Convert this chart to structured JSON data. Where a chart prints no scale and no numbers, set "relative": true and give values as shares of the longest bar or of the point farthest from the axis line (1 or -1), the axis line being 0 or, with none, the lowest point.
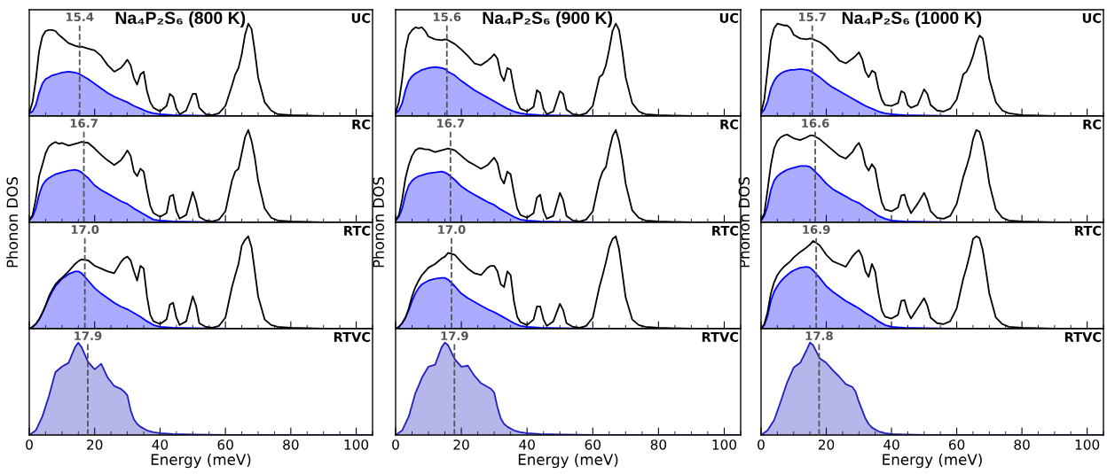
{
  "chart_data": [
    {
      "type": "line",
      "title": "Na₄P₂S₆ (800 K)",
      "relative": true,
      "xlim": [
        0,
        105
      ],
      "xticks": [
        0,
        20,
        40,
        60,
        80,
        100
      ],
      "tick_labels": false,
      "annotations": [
        "UC"
      ],
      "ref_lines": [
        {
          "axis": "x",
          "value": 15.4,
          "label": "15.4",
          "color": "#555555",
          "line_style": "dashed"
        }
      ],
      "series": [
        {
          "color": "#000000",
          "x": [
            0,
            1,
            2,
            3,
            4,
            5,
            6,
            7,
            8,
            9,
            10,
            12,
            14,
            15,
            16,
            18,
            20,
            22,
            24,
            26,
            28,
            29,
            30,
            31,
            32,
            33,
            34,
            35,
            36,
            37,
            38,
            40,
            42,
            43,
            44,
            45,
            46,
            48,
            50,
            51,
            52,
            54,
            56,
            58,
            60,
            62,
            63,
            64,
            65,
            66,
            67,
            68,
            69,
            70,
            72,
            74,
            76,
            80,
            90,
            105
          ],
          "values": [
            0.03,
            0.15,
            0.39,
            0.7,
            0.86,
            0.92,
            0.93,
            0.93,
            0.92,
            0.88,
            0.85,
            0.79,
            0.76,
            0.75,
            0.75,
            0.73,
            0.71,
            0.65,
            0.55,
            0.48,
            0.52,
            0.56,
            0.61,
            0.55,
            0.41,
            0.34,
            0.45,
            0.48,
            0.27,
            0.15,
            0.09,
            0.05,
            0.11,
            0.24,
            0.21,
            0.08,
            0.02,
            0.06,
            0.24,
            0.24,
            0.09,
            0.02,
            0.01,
            0.03,
            0.11,
            0.33,
            0.45,
            0.52,
            0.67,
            0.88,
            1.0,
            0.94,
            0.7,
            0.42,
            0.15,
            0.06,
            0.02,
            0.01,
            0,
            0
          ]
        },
        {
          "type": "area",
          "color": "#0000ff",
          "x": [
            0,
            1,
            2,
            3,
            4,
            5,
            6,
            7,
            8,
            9,
            10,
            12,
            14,
            15,
            16,
            18,
            20,
            22,
            24,
            26,
            28,
            30,
            32,
            34,
            36,
            38,
            40,
            44,
            50,
            60,
            105
          ],
          "values": [
            0.03,
            0.05,
            0.12,
            0.25,
            0.35,
            0.4,
            0.42,
            0.44,
            0.45,
            0.46,
            0.47,
            0.48,
            0.47,
            0.46,
            0.44,
            0.4,
            0.35,
            0.3,
            0.25,
            0.21,
            0.18,
            0.15,
            0.11,
            0.08,
            0.05,
            0.03,
            0.02,
            0.01,
            0.005,
            0,
            0
          ]
        }
      ]
    },
    {
      "type": "line",
      "title": "Na₄P₂S₆ (900 K)",
      "relative": true,
      "xlim": [
        0,
        105
      ],
      "xticks": [
        0,
        20,
        40,
        60,
        80,
        100
      ],
      "tick_labels": false,
      "annotations": [
        "UC"
      ],
      "ref_lines": [
        {
          "axis": "x",
          "value": 15.6,
          "label": "15.6",
          "color": "#555555",
          "line_style": "dashed"
        }
      ],
      "series": [
        {
          "color": "#000000",
          "x": [
            0,
            1,
            2,
            3,
            4,
            5,
            6,
            7,
            8,
            9,
            10,
            12,
            14,
            15,
            16,
            18,
            20,
            22,
            24,
            26,
            28,
            29,
            30,
            31,
            32,
            33,
            34,
            35,
            36,
            37,
            38,
            40,
            42,
            43,
            44,
            45,
            46,
            48,
            50,
            51,
            52,
            54,
            56,
            58,
            60,
            62,
            63,
            64,
            65,
            66,
            67,
            68,
            69,
            70,
            72,
            74,
            76,
            80,
            90,
            105
          ],
          "values": [
            0.03,
            0.15,
            0.4,
            0.72,
            0.88,
            0.93,
            0.96,
            0.95,
            0.96,
            0.92,
            0.86,
            0.83,
            0.82,
            0.83,
            0.82,
            0.78,
            0.72,
            0.65,
            0.57,
            0.55,
            0.6,
            0.63,
            0.67,
            0.62,
            0.45,
            0.38,
            0.52,
            0.5,
            0.3,
            0.15,
            0.08,
            0.05,
            0.1,
            0.28,
            0.25,
            0.08,
            0.02,
            0.05,
            0.27,
            0.24,
            0.07,
            0.02,
            0.01,
            0.03,
            0.11,
            0.42,
            0.45,
            0.55,
            0.72,
            0.92,
            1.0,
            0.93,
            0.7,
            0.42,
            0.14,
            0.05,
            0.02,
            0.01,
            0,
            0
          ]
        },
        {
          "type": "area",
          "color": "#0000ff",
          "x": [
            0,
            1,
            2,
            3,
            4,
            5,
            6,
            7,
            8,
            9,
            10,
            12,
            14,
            15,
            16,
            18,
            20,
            22,
            24,
            26,
            28,
            30,
            32,
            34,
            36,
            38,
            40,
            44,
            50,
            60,
            105
          ],
          "values": [
            0.03,
            0.06,
            0.14,
            0.28,
            0.38,
            0.43,
            0.46,
            0.48,
            0.5,
            0.51,
            0.52,
            0.53,
            0.52,
            0.51,
            0.48,
            0.44,
            0.38,
            0.33,
            0.28,
            0.24,
            0.2,
            0.16,
            0.12,
            0.08,
            0.05,
            0.03,
            0.02,
            0.01,
            0.005,
            0,
            0
          ]
        }
      ]
    },
    {
      "type": "line",
      "title": "Na₄P₂S₆ (1000 K)",
      "relative": true,
      "xlim": [
        0,
        105
      ],
      "xticks": [
        0,
        20,
        40,
        60,
        80,
        100
      ],
      "tick_labels": false,
      "annotations": [
        "UC"
      ],
      "ref_lines": [
        {
          "axis": "x",
          "value": 15.7,
          "label": "15.7",
          "color": "#555555",
          "line_style": "dashed"
        }
      ],
      "series": [
        {
          "color": "#000000",
          "x": [
            0,
            1,
            2,
            3,
            4,
            5,
            6,
            7,
            8,
            9,
            10,
            12,
            14,
            15,
            16,
            18,
            20,
            22,
            24,
            26,
            28,
            29,
            30,
            31,
            32,
            33,
            34,
            35,
            36,
            37,
            38,
            40,
            42,
            43,
            44,
            45,
            46,
            48,
            50,
            51,
            52,
            54,
            56,
            58,
            60,
            62,
            63,
            64,
            65,
            66,
            67,
            68,
            69,
            70,
            72,
            74,
            76,
            80,
            90,
            105
          ],
          "values": [
            0.03,
            0.18,
            0.5,
            0.82,
            0.95,
            1.0,
            0.99,
            0.98,
            0.98,
            0.95,
            0.88,
            0.84,
            0.83,
            0.84,
            0.83,
            0.8,
            0.75,
            0.68,
            0.6,
            0.57,
            0.62,
            0.65,
            0.69,
            0.62,
            0.48,
            0.42,
            0.49,
            0.47,
            0.3,
            0.18,
            0.12,
            0.11,
            0.14,
            0.27,
            0.25,
            0.12,
            0.09,
            0.12,
            0.29,
            0.24,
            0.12,
            0.06,
            0.05,
            0.08,
            0.18,
            0.45,
            0.48,
            0.55,
            0.65,
            0.78,
            0.87,
            0.84,
            0.65,
            0.4,
            0.15,
            0.06,
            0.03,
            0.01,
            0,
            0
          ]
        },
        {
          "type": "area",
          "color": "#0000ff",
          "x": [
            0,
            1,
            2,
            3,
            4,
            5,
            6,
            7,
            8,
            9,
            10,
            12,
            14,
            15,
            16,
            18,
            20,
            22,
            24,
            26,
            28,
            30,
            32,
            34,
            36,
            38,
            40,
            44,
            50,
            60,
            105
          ],
          "values": [
            0.03,
            0.07,
            0.16,
            0.3,
            0.38,
            0.43,
            0.46,
            0.48,
            0.49,
            0.5,
            0.5,
            0.51,
            0.5,
            0.49,
            0.47,
            0.42,
            0.36,
            0.31,
            0.27,
            0.23,
            0.19,
            0.15,
            0.11,
            0.08,
            0.05,
            0.03,
            0.02,
            0.01,
            0.005,
            0,
            0
          ]
        }
      ]
    },
    {
      "type": "line",
      "ylabel": "Phonon DOS",
      "relative": true,
      "xlim": [
        0,
        105
      ],
      "xticks": [
        0,
        20,
        40,
        60,
        80,
        100
      ],
      "tick_labels": false,
      "annotations": [
        "RC"
      ],
      "ref_lines": [
        {
          "axis": "x",
          "value": 16.7,
          "label": "16.7",
          "color": "#555555",
          "line_style": "dashed"
        }
      ],
      "series": [
        {
          "color": "#000000",
          "x": [
            0,
            1,
            2,
            3,
            4,
            5,
            6,
            7,
            8,
            9,
            10,
            12,
            14,
            15,
            16,
            18,
            20,
            22,
            24,
            26,
            28,
            29,
            30,
            31,
            32,
            33,
            34,
            35,
            36,
            37,
            38,
            40,
            42,
            43,
            44,
            45,
            46,
            48,
            50,
            51,
            52,
            54,
            56,
            58,
            60,
            62,
            63,
            64,
            65,
            66,
            67,
            68,
            69,
            70,
            72,
            74,
            76,
            80,
            90,
            105
          ],
          "values": [
            0.02,
            0.08,
            0.25,
            0.5,
            0.62,
            0.75,
            0.82,
            0.85,
            0.87,
            0.85,
            0.86,
            0.83,
            0.85,
            0.86,
            0.87,
            0.86,
            0.8,
            0.73,
            0.67,
            0.62,
            0.67,
            0.72,
            0.78,
            0.72,
            0.55,
            0.5,
            0.58,
            0.55,
            0.35,
            0.18,
            0.1,
            0.06,
            0.1,
            0.28,
            0.3,
            0.12,
            0.04,
            0.08,
            0.33,
            0.22,
            0.06,
            0.02,
            0.01,
            0.03,
            0.12,
            0.45,
            0.55,
            0.58,
            0.75,
            0.92,
            1.0,
            0.88,
            0.7,
            0.45,
            0.15,
            0.05,
            0.02,
            0.01,
            0,
            0
          ]
        },
        {
          "type": "area",
          "color": "#0000ff",
          "x": [
            0,
            1,
            2,
            3,
            4,
            5,
            6,
            7,
            8,
            9,
            10,
            12,
            14,
            15,
            16,
            18,
            20,
            22,
            24,
            26,
            28,
            30,
            32,
            34,
            36,
            38,
            40,
            44,
            50,
            60,
            105
          ],
          "values": [
            0.02,
            0.06,
            0.15,
            0.3,
            0.4,
            0.45,
            0.48,
            0.5,
            0.52,
            0.53,
            0.54,
            0.56,
            0.57,
            0.56,
            0.54,
            0.48,
            0.4,
            0.35,
            0.31,
            0.27,
            0.23,
            0.2,
            0.15,
            0.11,
            0.07,
            0.03,
            0.02,
            0.01,
            0.005,
            0,
            0
          ]
        }
      ]
    },
    {
      "type": "line",
      "ylabel": "Phonon DOS",
      "relative": true,
      "xlim": [
        0,
        105
      ],
      "xticks": [
        0,
        20,
        40,
        60,
        80,
        100
      ],
      "tick_labels": false,
      "annotations": [
        "RC"
      ],
      "ref_lines": [
        {
          "axis": "x",
          "value": 16.7,
          "label": "16.7",
          "color": "#555555",
          "line_style": "dashed"
        }
      ],
      "series": [
        {
          "color": "#000000",
          "x": [
            0,
            1,
            2,
            3,
            4,
            5,
            6,
            7,
            8,
            9,
            10,
            12,
            14,
            15,
            16,
            18,
            20,
            22,
            24,
            26,
            28,
            29,
            30,
            31,
            32,
            33,
            34,
            35,
            36,
            37,
            38,
            40,
            42,
            43,
            44,
            45,
            46,
            48,
            50,
            51,
            52,
            54,
            56,
            58,
            60,
            62,
            63,
            64,
            65,
            66,
            67,
            68,
            69,
            70,
            72,
            74,
            76,
            80,
            90,
            105
          ],
          "values": [
            0.02,
            0.08,
            0.25,
            0.48,
            0.62,
            0.72,
            0.78,
            0.8,
            0.8,
            0.79,
            0.79,
            0.76,
            0.78,
            0.79,
            0.8,
            0.78,
            0.72,
            0.66,
            0.62,
            0.58,
            0.62,
            0.66,
            0.7,
            0.64,
            0.48,
            0.42,
            0.55,
            0.52,
            0.32,
            0.15,
            0.08,
            0.05,
            0.1,
            0.27,
            0.3,
            0.12,
            0.04,
            0.07,
            0.32,
            0.24,
            0.07,
            0.02,
            0.01,
            0.03,
            0.12,
            0.45,
            0.55,
            0.6,
            0.78,
            0.93,
            1.0,
            0.88,
            0.68,
            0.42,
            0.13,
            0.05,
            0.02,
            0.01,
            0,
            0
          ]
        },
        {
          "type": "area",
          "color": "#0000ff",
          "x": [
            0,
            1,
            2,
            3,
            4,
            5,
            6,
            7,
            8,
            9,
            10,
            12,
            14,
            15,
            16,
            18,
            20,
            22,
            24,
            26,
            28,
            30,
            32,
            34,
            36,
            38,
            40,
            44,
            50,
            60,
            105
          ],
          "values": [
            0.02,
            0.06,
            0.15,
            0.3,
            0.4,
            0.45,
            0.48,
            0.5,
            0.51,
            0.52,
            0.53,
            0.54,
            0.55,
            0.54,
            0.52,
            0.46,
            0.39,
            0.34,
            0.3,
            0.26,
            0.22,
            0.19,
            0.14,
            0.1,
            0.06,
            0.03,
            0.02,
            0.01,
            0.005,
            0,
            0
          ]
        }
      ]
    },
    {
      "type": "line",
      "ylabel": "Phonon DOS",
      "relative": true,
      "xlim": [
        0,
        105
      ],
      "xticks": [
        0,
        20,
        40,
        60,
        80,
        100
      ],
      "tick_labels": false,
      "annotations": [
        "RC"
      ],
      "ref_lines": [
        {
          "axis": "x",
          "value": 16.6,
          "label": "16.6",
          "color": "#555555",
          "line_style": "dashed"
        }
      ],
      "series": [
        {
          "color": "#000000",
          "x": [
            0,
            1,
            2,
            3,
            4,
            5,
            6,
            7,
            8,
            9,
            10,
            12,
            14,
            15,
            16,
            18,
            20,
            22,
            24,
            26,
            28,
            29,
            30,
            31,
            32,
            33,
            34,
            35,
            36,
            37,
            38,
            40,
            42,
            43,
            44,
            45,
            46,
            48,
            50,
            51,
            52,
            54,
            56,
            58,
            60,
            62,
            63,
            64,
            65,
            66,
            67,
            68,
            69,
            70,
            72,
            74,
            76,
            80,
            90,
            105
          ],
          "values": [
            0.02,
            0.1,
            0.35,
            0.62,
            0.8,
            0.88,
            0.92,
            0.94,
            0.95,
            0.93,
            0.91,
            0.89,
            0.92,
            0.94,
            0.94,
            0.9,
            0.84,
            0.78,
            0.72,
            0.69,
            0.76,
            0.82,
            0.86,
            0.78,
            0.62,
            0.56,
            0.63,
            0.58,
            0.38,
            0.22,
            0.14,
            0.12,
            0.16,
            0.29,
            0.3,
            0.18,
            0.1,
            0.2,
            0.32,
            0.24,
            0.12,
            0.05,
            0.04,
            0.07,
            0.2,
            0.49,
            0.6,
            0.72,
            0.9,
            1.0,
            0.98,
            0.86,
            0.66,
            0.42,
            0.14,
            0.05,
            0.02,
            0.01,
            0,
            0
          ]
        },
        {
          "type": "area",
          "color": "#0000ff",
          "x": [
            0,
            1,
            2,
            3,
            4,
            5,
            6,
            7,
            8,
            9,
            10,
            12,
            14,
            15,
            16,
            18,
            20,
            22,
            24,
            26,
            28,
            30,
            32,
            34,
            36,
            38,
            40,
            44,
            50,
            60,
            105
          ],
          "values": [
            0.02,
            0.07,
            0.18,
            0.35,
            0.45,
            0.5,
            0.53,
            0.55,
            0.57,
            0.58,
            0.59,
            0.61,
            0.61,
            0.6,
            0.57,
            0.5,
            0.42,
            0.36,
            0.32,
            0.28,
            0.24,
            0.21,
            0.16,
            0.12,
            0.07,
            0.04,
            0.02,
            0.01,
            0.005,
            0,
            0
          ]
        }
      ]
    },
    {
      "type": "line",
      "relative": true,
      "xlim": [
        0,
        105
      ],
      "xticks": [
        0,
        20,
        40,
        60,
        80,
        100
      ],
      "tick_labels": false,
      "annotations": [
        "RTC"
      ],
      "ref_lines": [
        {
          "axis": "x",
          "value": 17.0,
          "label": "17.0",
          "color": "#555555",
          "line_style": "dashed"
        }
      ],
      "series": [
        {
          "color": "#000000",
          "x": [
            0,
            1,
            2,
            3,
            4,
            5,
            6,
            7,
            8,
            9,
            10,
            12,
            14,
            15,
            16,
            18,
            20,
            22,
            24,
            26,
            28,
            29,
            30,
            31,
            32,
            33,
            34,
            35,
            36,
            37,
            38,
            40,
            42,
            43,
            44,
            45,
            46,
            48,
            50,
            51,
            52,
            54,
            56,
            58,
            60,
            62,
            63,
            64,
            65,
            66,
            67,
            68,
            69,
            70,
            72,
            74,
            76,
            80,
            90,
            105
          ],
          "values": [
            0,
            0.02,
            0.05,
            0.1,
            0.17,
            0.25,
            0.35,
            0.42,
            0.48,
            0.52,
            0.55,
            0.62,
            0.7,
            0.73,
            0.75,
            0.74,
            0.68,
            0.65,
            0.62,
            0.6,
            0.72,
            0.76,
            0.78,
            0.74,
            0.62,
            0.52,
            0.68,
            0.65,
            0.35,
            0.15,
            0.08,
            0.05,
            0.1,
            0.26,
            0.28,
            0.12,
            0.04,
            0.08,
            0.35,
            0.25,
            0.06,
            0.02,
            0.01,
            0.03,
            0.12,
            0.45,
            0.58,
            0.7,
            0.9,
            0.96,
            1.0,
            0.88,
            0.62,
            0.35,
            0.1,
            0.04,
            0.02,
            0.01,
            0,
            0
          ]
        },
        {
          "type": "area",
          "color": "#0000ff",
          "x": [
            0,
            1,
            2,
            3,
            4,
            5,
            6,
            7,
            8,
            9,
            10,
            12,
            14,
            15,
            16,
            18,
            20,
            22,
            24,
            26,
            28,
            30,
            32,
            34,
            36,
            38,
            40,
            44,
            50,
            60,
            105
          ],
          "values": [
            0,
            0.02,
            0.05,
            0.1,
            0.17,
            0.25,
            0.33,
            0.4,
            0.46,
            0.5,
            0.54,
            0.59,
            0.62,
            0.62,
            0.6,
            0.52,
            0.44,
            0.38,
            0.33,
            0.28,
            0.24,
            0.21,
            0.17,
            0.13,
            0.08,
            0.04,
            0.02,
            0.01,
            0.005,
            0,
            0
          ]
        }
      ]
    },
    {
      "type": "line",
      "relative": true,
      "xlim": [
        0,
        105
      ],
      "xticks": [
        0,
        20,
        40,
        60,
        80,
        100
      ],
      "tick_labels": false,
      "annotations": [
        "RTC"
      ],
      "ref_lines": [
        {
          "axis": "x",
          "value": 17.0,
          "label": "17.0",
          "color": "#555555",
          "line_style": "dashed"
        }
      ],
      "series": [
        {
          "color": "#000000",
          "x": [
            0,
            1,
            2,
            3,
            4,
            5,
            6,
            7,
            8,
            9,
            10,
            12,
            14,
            15,
            16,
            18,
            20,
            22,
            24,
            26,
            28,
            29,
            30,
            31,
            32,
            33,
            34,
            35,
            36,
            37,
            38,
            40,
            42,
            43,
            44,
            45,
            46,
            48,
            50,
            51,
            52,
            54,
            56,
            58,
            60,
            62,
            63,
            64,
            65,
            66,
            67,
            68,
            69,
            70,
            72,
            74,
            76,
            80,
            90,
            105
          ],
          "values": [
            0,
            0.02,
            0.06,
            0.12,
            0.22,
            0.35,
            0.45,
            0.52,
            0.58,
            0.62,
            0.66,
            0.7,
            0.76,
            0.78,
            0.82,
            0.8,
            0.72,
            0.65,
            0.6,
            0.58,
            0.66,
            0.68,
            0.68,
            0.62,
            0.48,
            0.45,
            0.62,
            0.58,
            0.3,
            0.13,
            0.07,
            0.04,
            0.1,
            0.24,
            0.24,
            0.1,
            0.03,
            0.08,
            0.27,
            0.2,
            0.06,
            0.02,
            0.01,
            0.03,
            0.12,
            0.45,
            0.58,
            0.72,
            0.88,
            0.97,
            1.0,
            0.86,
            0.6,
            0.34,
            0.1,
            0.04,
            0.02,
            0.01,
            0,
            0
          ]
        },
        {
          "type": "area",
          "color": "#0000ff",
          "x": [
            0,
            1,
            2,
            3,
            4,
            5,
            6,
            7,
            8,
            9,
            10,
            12,
            14,
            15,
            16,
            18,
            20,
            22,
            24,
            26,
            28,
            30,
            32,
            34,
            36,
            38,
            40,
            44,
            50,
            60,
            105
          ],
          "values": [
            0,
            0.02,
            0.06,
            0.12,
            0.2,
            0.3,
            0.38,
            0.44,
            0.48,
            0.5,
            0.52,
            0.54,
            0.55,
            0.55,
            0.53,
            0.46,
            0.38,
            0.33,
            0.29,
            0.25,
            0.21,
            0.18,
            0.14,
            0.1,
            0.06,
            0.03,
            0.02,
            0.01,
            0.005,
            0,
            0
          ]
        }
      ]
    },
    {
      "type": "line",
      "relative": true,
      "xlim": [
        0,
        105
      ],
      "xticks": [
        0,
        20,
        40,
        60,
        80,
        100
      ],
      "tick_labels": false,
      "annotations": [
        "RTC"
      ],
      "ref_lines": [
        {
          "axis": "x",
          "value": 16.9,
          "label": "16.9",
          "color": "#555555",
          "line_style": "dashed"
        }
      ],
      "series": [
        {
          "color": "#000000",
          "x": [
            0,
            1,
            2,
            3,
            4,
            5,
            6,
            7,
            8,
            9,
            10,
            12,
            14,
            15,
            16,
            18,
            20,
            22,
            24,
            26,
            28,
            29,
            30,
            31,
            32,
            33,
            34,
            35,
            36,
            37,
            38,
            40,
            42,
            43,
            44,
            45,
            46,
            48,
            50,
            51,
            52,
            54,
            56,
            58,
            60,
            62,
            63,
            64,
            65,
            66,
            67,
            68,
            69,
            70,
            72,
            74,
            76,
            80,
            90,
            105
          ],
          "values": [
            0,
            0.05,
            0.18,
            0.38,
            0.5,
            0.58,
            0.63,
            0.67,
            0.7,
            0.73,
            0.77,
            0.83,
            0.88,
            0.91,
            0.95,
            0.9,
            0.8,
            0.73,
            0.7,
            0.67,
            0.78,
            0.82,
            0.85,
            0.78,
            0.62,
            0.56,
            0.7,
            0.62,
            0.38,
            0.2,
            0.13,
            0.11,
            0.15,
            0.3,
            0.31,
            0.18,
            0.11,
            0.22,
            0.33,
            0.25,
            0.12,
            0.06,
            0.05,
            0.08,
            0.22,
            0.54,
            0.66,
            0.8,
            0.97,
            1.0,
            0.98,
            0.85,
            0.62,
            0.38,
            0.12,
            0.05,
            0.02,
            0.01,
            0,
            0
          ]
        },
        {
          "type": "area",
          "color": "#0000ff",
          "x": [
            0,
            1,
            2,
            3,
            4,
            5,
            6,
            7,
            8,
            9,
            10,
            12,
            14,
            15,
            16,
            18,
            20,
            22,
            24,
            26,
            28,
            30,
            32,
            34,
            36,
            38,
            40,
            44,
            50,
            60,
            105
          ],
          "values": [
            0,
            0.04,
            0.14,
            0.3,
            0.4,
            0.46,
            0.51,
            0.55,
            0.58,
            0.61,
            0.63,
            0.66,
            0.67,
            0.66,
            0.63,
            0.55,
            0.46,
            0.4,
            0.35,
            0.3,
            0.26,
            0.22,
            0.17,
            0.13,
            0.08,
            0.04,
            0.02,
            0.01,
            0.005,
            0,
            0
          ]
        }
      ]
    },
    {
      "type": "area",
      "xlabel": "Energy (meV)",
      "relative": true,
      "xlim": [
        0,
        105
      ],
      "xticks": [
        0,
        20,
        40,
        60,
        80,
        100
      ],
      "tick_labels": "x",
      "annotations": [
        "RTVC"
      ],
      "ref_lines": [
        {
          "axis": "x",
          "value": 17.9,
          "label": "17.9",
          "color": "#555555",
          "line_style": "dashed"
        }
      ],
      "series": [
        {
          "color": "#2020c0",
          "x": [
            0,
            2,
            4,
            6,
            8,
            10,
            12,
            14,
            15,
            16,
            18,
            20,
            22,
            24,
            26,
            28,
            29,
            30,
            31,
            32,
            33,
            34,
            36,
            38,
            40,
            44,
            50,
            60,
            105
          ],
          "values": [
            0,
            0.05,
            0.2,
            0.42,
            0.68,
            0.74,
            0.78,
            0.95,
            1.0,
            0.95,
            0.79,
            0.71,
            0.77,
            0.62,
            0.53,
            0.5,
            0.47,
            0.43,
            0.27,
            0.17,
            0.12,
            0.09,
            0.05,
            0.03,
            0.02,
            0.01,
            0.005,
            0,
            0
          ]
        }
      ]
    },
    {
      "type": "area",
      "xlabel": "Energy (meV)",
      "relative": true,
      "xlim": [
        0,
        105
      ],
      "xticks": [
        0,
        20,
        40,
        60,
        80,
        100
      ],
      "tick_labels": "x",
      "annotations": [
        "RTVC"
      ],
      "ref_lines": [
        {
          "axis": "x",
          "value": 17.9,
          "label": "17.9",
          "color": "#555555",
          "line_style": "dashed"
        }
      ],
      "series": [
        {
          "color": "#2020c0",
          "x": [
            0,
            2,
            4,
            6,
            8,
            10,
            12,
            14,
            15,
            16,
            18,
            20,
            22,
            24,
            26,
            28,
            29,
            30,
            31,
            32,
            33,
            34,
            36,
            38,
            40,
            44,
            50,
            60,
            105
          ],
          "values": [
            0,
            0.05,
            0.2,
            0.45,
            0.62,
            0.74,
            0.76,
            0.95,
            1.0,
            0.97,
            0.82,
            0.74,
            0.75,
            0.64,
            0.56,
            0.52,
            0.5,
            0.46,
            0.3,
            0.18,
            0.12,
            0.09,
            0.05,
            0.03,
            0.02,
            0.01,
            0.005,
            0,
            0
          ]
        }
      ]
    },
    {
      "type": "area",
      "xlabel": "Energy (meV)",
      "relative": true,
      "xlim": [
        0,
        105
      ],
      "xticks": [
        0,
        20,
        40,
        60,
        80,
        100
      ],
      "tick_labels": "x",
      "annotations": [
        "RTVC"
      ],
      "ref_lines": [
        {
          "axis": "x",
          "value": 17.8,
          "label": "17.8",
          "color": "#555555",
          "line_style": "dashed"
        }
      ],
      "series": [
        {
          "color": "#2020c0",
          "x": [
            0,
            2,
            4,
            6,
            8,
            10,
            12,
            14,
            15,
            16,
            18,
            20,
            22,
            24,
            26,
            28,
            29,
            30,
            31,
            32,
            33,
            34,
            36,
            38,
            40,
            44,
            50,
            60,
            105
          ],
          "values": [
            0,
            0.05,
            0.16,
            0.36,
            0.57,
            0.73,
            0.78,
            0.92,
            1.0,
            0.97,
            0.83,
            0.78,
            0.7,
            0.63,
            0.55,
            0.52,
            0.47,
            0.36,
            0.27,
            0.18,
            0.12,
            0.08,
            0.04,
            0.02,
            0.01,
            0.005,
            0,
            0,
            0
          ]
        }
      ]
    }
  ]
}
